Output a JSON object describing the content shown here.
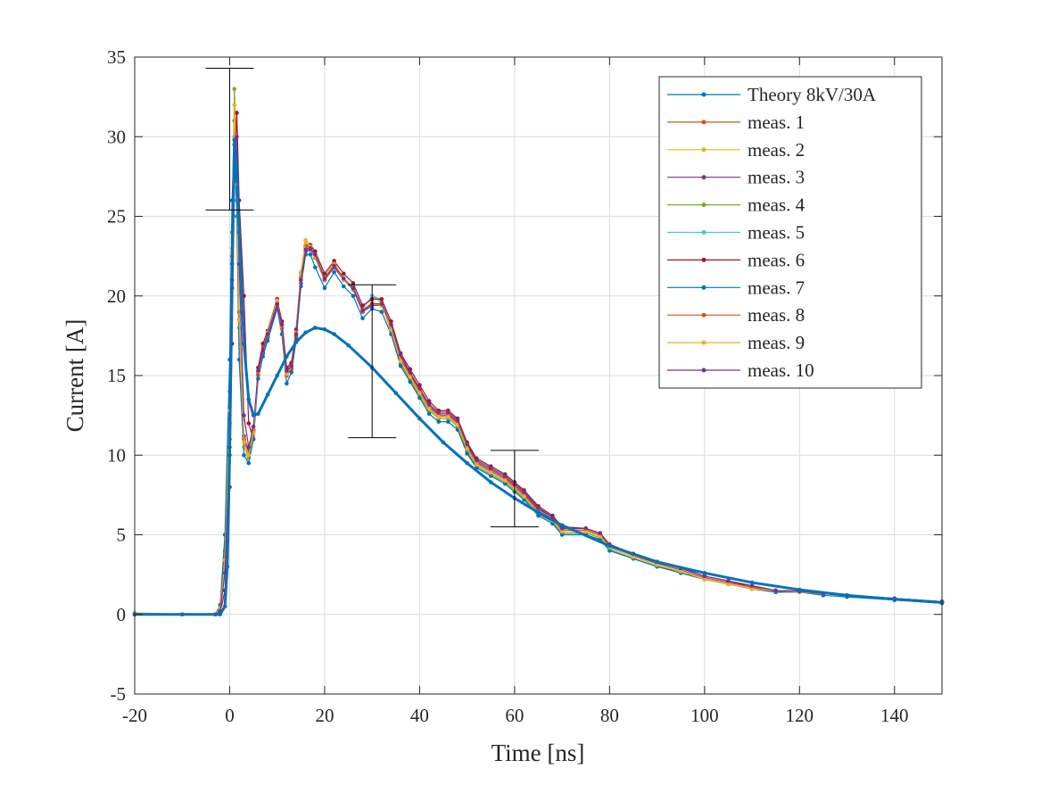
{
  "chart_data": {
    "type": "line",
    "title": "",
    "xlabel": "Time [ns]",
    "ylabel": "Current [A]",
    "xlim": [
      -20,
      150
    ],
    "ylim": [
      -5,
      35
    ],
    "xticks": [
      -20,
      0,
      20,
      40,
      60,
      80,
      100,
      120,
      140
    ],
    "yticks": [
      -5,
      0,
      5,
      10,
      15,
      20,
      25,
      30,
      35
    ],
    "grid": true,
    "legend_position": "top-right",
    "markers": true,
    "theory": {
      "name": "Theory 8kV/30A",
      "color": "#0072BD",
      "x": [
        -20,
        -10,
        -2,
        -1,
        -0.5,
        0,
        0.5,
        1,
        1.5,
        2,
        3,
        4,
        5,
        6,
        8,
        10,
        12,
        14,
        16,
        18,
        20,
        22,
        25,
        30,
        35,
        40,
        45,
        50,
        55,
        60,
        65,
        70,
        80,
        90,
        100,
        110,
        120,
        130,
        140,
        150
      ],
      "y": [
        0,
        0,
        0,
        0.5,
        3,
        10,
        22,
        29.8,
        28,
        24,
        17,
        13.5,
        12.5,
        12.6,
        13.8,
        15,
        16.2,
        17.1,
        17.7,
        18,
        17.9,
        17.6,
        16.9,
        15.5,
        13.9,
        12.3,
        10.8,
        9.5,
        8.3,
        7.3,
        6.4,
        5.6,
        4.3,
        3.3,
        2.6,
        2.0,
        1.55,
        1.2,
        0.95,
        0.75
      ]
    },
    "measurement_x": [
      -20,
      -10,
      -3,
      -2,
      -1,
      0,
      0.5,
      1,
      1.5,
      2,
      3,
      4,
      5,
      6,
      7,
      8,
      10,
      11,
      12,
      13,
      14,
      15,
      16,
      17,
      18,
      20,
      22,
      24,
      26,
      28,
      30,
      32,
      34,
      36,
      38,
      40,
      42,
      44,
      46,
      48,
      50,
      52,
      55,
      58,
      60,
      62,
      65,
      68,
      70,
      75,
      78,
      80,
      85,
      90,
      95,
      100,
      105,
      110,
      115,
      120,
      125,
      130,
      140,
      150
    ],
    "series": [
      {
        "name": "meas. 1",
        "color": "#D95319",
        "values": [
          0,
          0,
          0,
          0.3,
          3,
          12,
          22,
          31,
          27,
          19,
          11,
          10,
          11.5,
          15,
          16.5,
          17.5,
          19.5,
          18,
          15,
          15.5,
          17.5,
          21,
          23,
          23,
          22.5,
          21,
          22,
          21,
          20.5,
          19,
          19.5,
          19.5,
          18,
          16,
          15,
          14,
          13,
          12.5,
          12.5,
          12,
          10.5,
          9.5,
          9,
          8.5,
          8,
          7.5,
          6.5,
          6,
          5.3,
          5.3,
          5,
          4.3,
          3.7,
          3.2,
          2.8,
          2.3,
          2.0,
          1.7,
          1.5,
          1.45,
          1.3,
          1.2,
          1.0,
          0.8
        ]
      },
      {
        "name": "meas. 2",
        "color": "#EDB120",
        "values": [
          0.1,
          0,
          0,
          0.4,
          3.5,
          13,
          23,
          32,
          27,
          18,
          10.5,
          9.8,
          11.2,
          15.2,
          16.8,
          17.8,
          19.8,
          18.2,
          15.2,
          15.8,
          17.8,
          21.5,
          23.5,
          23.2,
          22.6,
          21.2,
          22.1,
          21.1,
          20.4,
          19.1,
          19.6,
          19.4,
          17.8,
          15.8,
          14.8,
          13.8,
          12.9,
          12.4,
          12.4,
          11.9,
          10.3,
          9.4,
          8.9,
          8.4,
          7.9,
          7.4,
          6.4,
          5.9,
          5.2,
          5.2,
          4.9,
          4.2,
          3.6,
          3.1,
          2.7,
          2.2,
          1.9,
          1.6,
          1.5,
          1.4,
          1.3,
          1.2,
          1.0,
          0.8
        ]
      },
      {
        "name": "meas. 3",
        "color": "#7E2F8E",
        "values": [
          0,
          0,
          0,
          0.2,
          2.8,
          11,
          21,
          30,
          26,
          18.5,
          11.2,
          10.2,
          11.6,
          15.1,
          16.4,
          17.4,
          19.4,
          18.1,
          15.1,
          15.4,
          17.4,
          20.8,
          22.8,
          22.9,
          22.4,
          21,
          21.8,
          21,
          20.4,
          19,
          19.4,
          19.4,
          18.1,
          16.2,
          15.1,
          14.1,
          13.1,
          12.6,
          12.6,
          12.1,
          10.6,
          9.6,
          9.1,
          8.6,
          8.1,
          7.6,
          6.6,
          6.1,
          5.4,
          5.4,
          5.1,
          4.4,
          3.8,
          3.3,
          2.9,
          2.4,
          2.1,
          1.8,
          1.5,
          1.45,
          1.3,
          1.2,
          1.0,
          0.8
        ]
      },
      {
        "name": "meas. 4",
        "color": "#77AC30",
        "values": [
          0,
          0,
          0,
          0.5,
          4,
          14,
          24,
          33,
          27.5,
          18,
          10.8,
          9.9,
          11.4,
          15.3,
          16.6,
          17.6,
          19.6,
          18,
          15,
          15.6,
          17.6,
          21.2,
          23.2,
          23,
          22.4,
          21,
          21.9,
          21,
          20.4,
          19.2,
          20,
          19.6,
          17.9,
          15.7,
          14.7,
          13.7,
          12.8,
          12.3,
          12.3,
          11.8,
          10.2,
          9.3,
          8.8,
          8.3,
          7.8,
          7.3,
          6.3,
          5.8,
          5.1,
          5.1,
          4.8,
          4.1,
          3.5,
          3.0,
          2.7,
          2.2,
          1.9,
          1.6,
          1.4,
          1.4,
          1.3,
          1.2,
          0.9,
          0.8
        ]
      },
      {
        "name": "meas. 5",
        "color": "#4DBEEE",
        "values": [
          0,
          0,
          0,
          0.3,
          3,
          12,
          22,
          30,
          26,
          18,
          11,
          10,
          11.5,
          15,
          16.5,
          17.5,
          19.6,
          18,
          15,
          15.5,
          17.5,
          21,
          23,
          23,
          22.5,
          21,
          22,
          21,
          20.6,
          19.2,
          20,
          19.8,
          18,
          16,
          15,
          14,
          13,
          12.5,
          12.5,
          12,
          10.5,
          9.5,
          9,
          8.5,
          8,
          7.5,
          6.5,
          6,
          5.3,
          5.3,
          5,
          4.3,
          3.7,
          3.2,
          2.8,
          2.3,
          2.0,
          1.7,
          1.5,
          1.45,
          1.3,
          1.2,
          1.0,
          0.8
        ]
      },
      {
        "name": "meas. 6",
        "color": "#A2142F",
        "values": [
          0,
          0,
          0,
          0.1,
          1.5,
          8,
          17,
          27,
          31.5,
          26,
          20,
          12,
          11,
          15.5,
          17,
          17.8,
          19.8,
          18.4,
          15.5,
          15.8,
          17.9,
          21.4,
          23.1,
          23.2,
          22.8,
          21.4,
          22.2,
          21.4,
          20.8,
          19.4,
          19.8,
          19.8,
          18.4,
          16.4,
          15.4,
          14.4,
          13.4,
          12.8,
          12.8,
          12.3,
          10.8,
          9.8,
          9.3,
          8.8,
          8.3,
          7.8,
          6.8,
          6.2,
          5.5,
          5.4,
          5.1,
          4.4,
          3.8,
          3.3,
          2.9,
          2.4,
          2.1,
          1.7,
          1.5,
          1.45,
          1.3,
          1.2,
          1.0,
          0.8
        ]
      },
      {
        "name": "meas. 7",
        "color": "#0072BD",
        "values": [
          0,
          0,
          0,
          0.6,
          5,
          16,
          26,
          29.8,
          25,
          16,
          10,
          9.5,
          11,
          14.8,
          16.2,
          17.2,
          19.2,
          17.6,
          14.5,
          15.2,
          17.2,
          20.6,
          22.6,
          22.6,
          21.8,
          20.5,
          21.5,
          20.6,
          20,
          18.6,
          19.2,
          19,
          17.6,
          15.6,
          14.6,
          13.6,
          12.6,
          12.1,
          12.1,
          11.6,
          10.1,
          9.2,
          8.7,
          8.2,
          7.7,
          7.2,
          6.2,
          5.7,
          5.0,
          5.0,
          4.7,
          4.0,
          3.5,
          3.0,
          2.6,
          2.2,
          1.9,
          1.6,
          1.4,
          1.4,
          1.2,
          1.1,
          0.9,
          0.7
        ]
      },
      {
        "name": "meas. 8",
        "color": "#D95319",
        "values": [
          0,
          0,
          0,
          0.3,
          3.2,
          12.5,
          22.5,
          31,
          27,
          18.5,
          11,
          10,
          11.6,
          15.1,
          16.6,
          17.6,
          19.5,
          18,
          15,
          15.5,
          17.5,
          21.1,
          23.1,
          23.1,
          22.5,
          21,
          22,
          21,
          20.5,
          19,
          19.5,
          19.5,
          18,
          16,
          15,
          14,
          13,
          12.5,
          12.5,
          12,
          10.5,
          9.5,
          9,
          8.5,
          8,
          7.5,
          6.5,
          6,
          5.3,
          5.3,
          5,
          4.3,
          3.7,
          3.2,
          2.8,
          2.3,
          2.0,
          1.7,
          1.5,
          1.45,
          1.3,
          1.2,
          1.0,
          0.8
        ]
      },
      {
        "name": "meas. 9",
        "color": "#EDB120",
        "values": [
          0,
          0,
          0,
          0.4,
          3.4,
          12.8,
          23,
          32,
          27,
          18.5,
          10.8,
          10,
          11.4,
          15.2,
          16.6,
          17.7,
          19.7,
          18.1,
          15.1,
          15.6,
          17.7,
          21.4,
          23.4,
          23.1,
          22.5,
          21.1,
          22,
          21,
          20.5,
          19.1,
          19.5,
          19.4,
          17.9,
          15.9,
          14.9,
          13.9,
          12.9,
          12.4,
          12.4,
          11.9,
          10.4,
          9.4,
          8.9,
          8.4,
          7.9,
          7.4,
          6.4,
          5.9,
          5.2,
          5.2,
          4.9,
          4.2,
          3.6,
          3.1,
          2.7,
          2.2,
          1.9,
          1.6,
          1.5,
          1.4,
          1.3,
          1.2,
          1.0,
          0.8
        ]
      },
      {
        "name": "meas. 10",
        "color": "#7E2F8E",
        "values": [
          0,
          0,
          0,
          0.2,
          2.6,
          10.5,
          20.5,
          29.5,
          30,
          22,
          12.5,
          10.5,
          11.8,
          15.3,
          16.6,
          17.6,
          19.5,
          18.2,
          15.3,
          15.6,
          17.6,
          21,
          22.9,
          23,
          22.6,
          21.1,
          21.9,
          21.1,
          20.5,
          19.1,
          19.5,
          19.5,
          18.2,
          16.3,
          15.2,
          14.2,
          13.2,
          12.7,
          12.7,
          12.2,
          10.7,
          9.7,
          9.2,
          8.7,
          8.2,
          7.7,
          6.7,
          6.1,
          5.4,
          5.4,
          5.1,
          4.4,
          3.8,
          3.3,
          2.9,
          2.4,
          2.1,
          1.8,
          1.5,
          1.45,
          1.3,
          1.2,
          1.0,
          0.8
        ]
      }
    ],
    "error_bars": [
      {
        "x": 0,
        "low": 25.4,
        "high": 34.3
      },
      {
        "x": 30,
        "low": 11.1,
        "high": 20.7
      },
      {
        "x": 60,
        "low": 5.5,
        "high": 10.3
      }
    ]
  }
}
